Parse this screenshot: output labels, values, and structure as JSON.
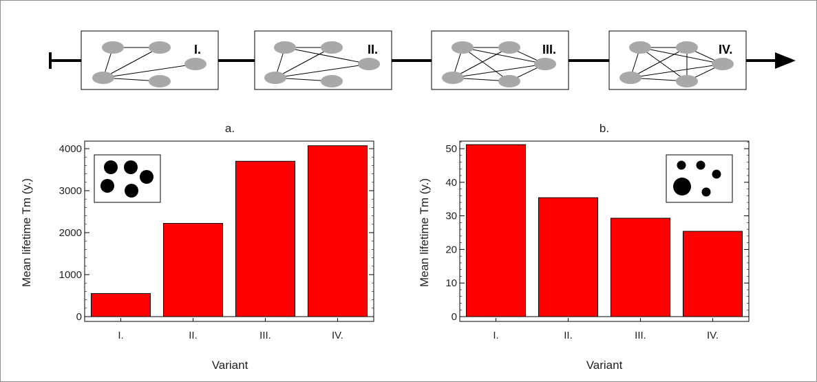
{
  "timeline": {
    "stages": [
      {
        "label": "I."
      },
      {
        "label": "II."
      },
      {
        "label": "III."
      },
      {
        "label": "IV."
      }
    ]
  },
  "chart_data": [
    {
      "type": "bar",
      "title": "a.",
      "xlabel": "Variant",
      "ylabel": "Mean lifetime Tm  (y.)",
      "categories": [
        "I.",
        "II.",
        "III.",
        "IV."
      ],
      "values": [
        550,
        2220,
        3700,
        4070
      ],
      "ylim": [
        0,
        4000
      ],
      "yticks": [
        0,
        1000,
        2000,
        3000,
        4000
      ],
      "inset": "five equal black circles, top-left",
      "bar_color": "#ff0000"
    },
    {
      "type": "bar",
      "title": "b.",
      "xlabel": "Variant",
      "ylabel": "Mean lifetime Tm  (y.)",
      "categories": [
        "I.",
        "II.",
        "III.",
        "IV."
      ],
      "values": [
        51.2,
        35.4,
        29.3,
        25.4
      ],
      "ylim": [
        0,
        50
      ],
      "yticks": [
        0,
        10,
        20,
        30,
        40,
        50
      ],
      "inset": "five black circles of varying size, top-right",
      "bar_color": "#ff0000"
    }
  ]
}
